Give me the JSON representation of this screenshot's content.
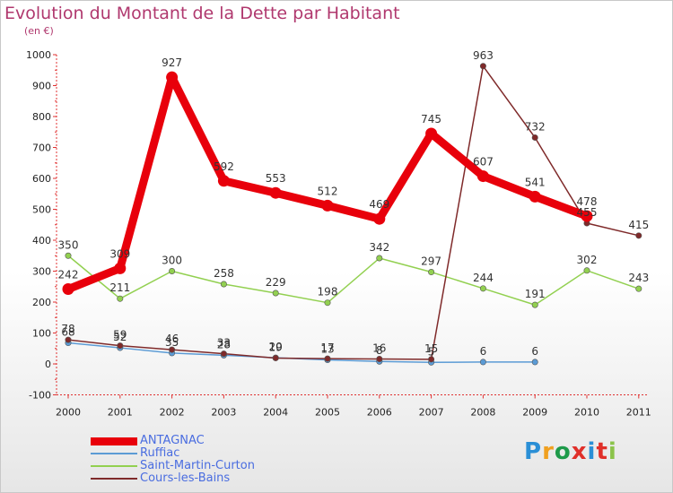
{
  "title": "Evolution du Montant de la Dette par Habitant",
  "subtitle": "(en €)",
  "logo": {
    "text": "Proxiti",
    "colors": [
      "#2a8fd6",
      "#f0a020",
      "#1e9a4a",
      "#e0302a",
      "#2a8fd6",
      "#e0302a",
      "#8bc34a"
    ]
  },
  "chart_data": {
    "type": "line",
    "title": "Evolution du Montant de la Dette par Habitant",
    "ylabel": "(en €)",
    "xlabel": "",
    "x": [
      "2000",
      "2001",
      "2002",
      "2003",
      "2004",
      "2005",
      "2006",
      "2007",
      "2008",
      "2009",
      "2010",
      "2011"
    ],
    "ylim": [
      -100,
      1000
    ],
    "yticks": [
      "-100",
      "0",
      "100",
      "200",
      "300",
      "400",
      "500",
      "600",
      "700",
      "800",
      "900",
      "1000"
    ],
    "grid": false,
    "legend_position": "bottom-left",
    "series": [
      {
        "name": "ANTAGNAC",
        "color": "#e8000b",
        "values": [
          242,
          309,
          927,
          592,
          553,
          512,
          469,
          745,
          607,
          541,
          478,
          null
        ]
      },
      {
        "name": "Ruffiac",
        "color": "#5b9bd5",
        "values": [
          68,
          52,
          35,
          28,
          20,
          13,
          8,
          5,
          6,
          6,
          null,
          null
        ]
      },
      {
        "name": "Saint-Martin-Curton",
        "color": "#92d050",
        "values": [
          350,
          211,
          300,
          258,
          229,
          198,
          342,
          297,
          244,
          191,
          302,
          243
        ]
      },
      {
        "name": "Cours-les-Bains",
        "color": "#7f2a2a",
        "values": [
          78,
          59,
          46,
          33,
          19,
          17,
          16,
          15,
          963,
          732,
          455,
          415
        ]
      }
    ]
  }
}
